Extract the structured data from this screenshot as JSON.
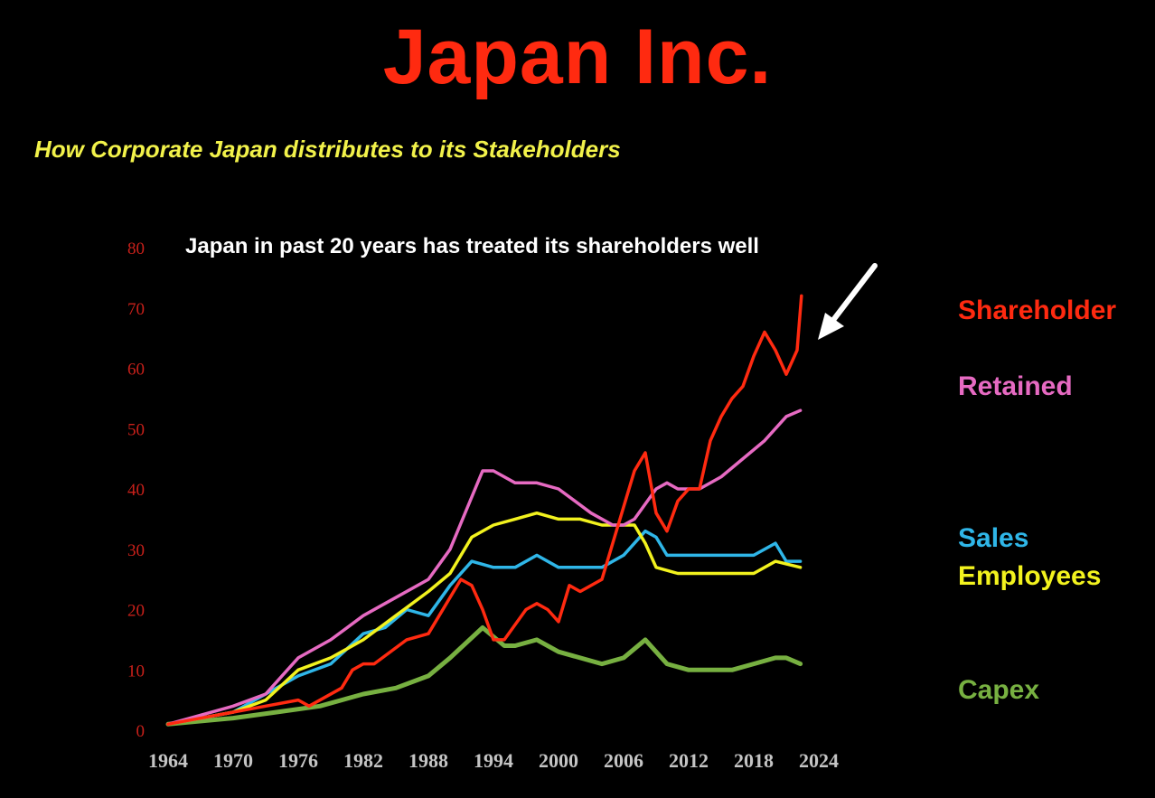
{
  "header": {
    "title": "Japan Inc.",
    "subtitle": "How Corporate Japan distributes to its Stakeholders"
  },
  "chart_data": {
    "type": "line",
    "title": "Japan Inc.",
    "subtitle": "How Corporate Japan distributes to its Stakeholders",
    "annotation": "Japan in past 20 years has treated its shareholders well",
    "xlim": [
      1964,
      2024
    ],
    "ylim": [
      0,
      80
    ],
    "x_ticks": [
      1964,
      1970,
      1976,
      1982,
      1988,
      1994,
      2000,
      2006,
      2012,
      2018,
      2024
    ],
    "y_ticks": [
      0,
      10,
      20,
      30,
      40,
      50,
      60,
      70,
      80
    ],
    "grid": false,
    "legend_placement": "right",
    "series": [
      {
        "name": "Shareholder",
        "color": "#ff2a10",
        "x": [
          1964,
          1970,
          1973,
          1976,
          1977,
          1980,
          1981,
          1982,
          1983,
          1986,
          1988,
          1991,
          1992,
          1993,
          1994,
          1995,
          1997,
          1998,
          1999,
          2000,
          2001,
          2002,
          2004,
          2006,
          2007,
          2008,
          2009,
          2010,
          2011,
          2012,
          2013,
          2014,
          2015,
          2016,
          2017,
          2018,
          2019,
          2020,
          2021,
          2022,
          2022.4
        ],
        "y": [
          1,
          3,
          4,
          5,
          4,
          7,
          10,
          11,
          11,
          15,
          16,
          25,
          24,
          20,
          15,
          15,
          20,
          21,
          20,
          18,
          24,
          23,
          25,
          37,
          43,
          46,
          36,
          33,
          38,
          40,
          40,
          48,
          52,
          55,
          57,
          62,
          66,
          63,
          59,
          63,
          72
        ]
      },
      {
        "name": "Retained",
        "color": "#e66ac2",
        "x": [
          1964,
          1970,
          1973,
          1976,
          1979,
          1982,
          1984,
          1988,
          1990,
          1993,
          1994,
          1996,
          1998,
          2000,
          2003,
          2005,
          2006,
          2007,
          2009,
          2010,
          2011,
          2013,
          2015,
          2017,
          2019,
          2021,
          2022.3
        ],
        "y": [
          1,
          4,
          6,
          12,
          15,
          19,
          21,
          25,
          30,
          43,
          43,
          41,
          41,
          40,
          36,
          34,
          34,
          35,
          40,
          41,
          40,
          40,
          42,
          45,
          48,
          52,
          53
        ]
      },
      {
        "name": "Sales",
        "color": "#2fb6e8",
        "x": [
          1964,
          1970,
          1976,
          1979,
          1982,
          1984,
          1986,
          1988,
          1990,
          1992,
          1994,
          1996,
          1998,
          2000,
          2004,
          2006,
          2008,
          2009,
          2010,
          2012,
          2014,
          2016,
          2018,
          2020,
          2021,
          2022.3
        ],
        "y": [
          1,
          3,
          9,
          11,
          16,
          17,
          20,
          19,
          24,
          28,
          27,
          27,
          29,
          27,
          27,
          29,
          33,
          32,
          29,
          29,
          29,
          29,
          29,
          31,
          28,
          28
        ]
      },
      {
        "name": "Employees",
        "color": "#f2f21e",
        "x": [
          1964,
          1970,
          1973,
          1976,
          1979,
          1982,
          1985,
          1988,
          1990,
          1992,
          1994,
          1996,
          1998,
          2000,
          2002,
          2004,
          2006,
          2007,
          2008,
          2009,
          2011,
          2014,
          2016,
          2018,
          2020,
          2022.3
        ],
        "y": [
          1,
          3,
          5,
          10,
          12,
          15,
          19,
          23,
          26,
          32,
          34,
          35,
          36,
          35,
          35,
          34,
          34,
          34,
          31,
          27,
          26,
          26,
          26,
          26,
          28,
          27
        ]
      },
      {
        "name": "Capex",
        "color": "#77b041",
        "x": [
          1964,
          1970,
          1974,
          1978,
          1982,
          1985,
          1988,
          1990,
          1993,
          1995,
          1996,
          1998,
          2000,
          2004,
          2006,
          2008,
          2010,
          2012,
          2014,
          2016,
          2018,
          2020,
          2021,
          2022.3
        ],
        "y": [
          1,
          2,
          3,
          4,
          6,
          7,
          9,
          12,
          17,
          14,
          14,
          15,
          13,
          11,
          12,
          15,
          11,
          10,
          10,
          10,
          11,
          12,
          12,
          11
        ]
      }
    ]
  }
}
